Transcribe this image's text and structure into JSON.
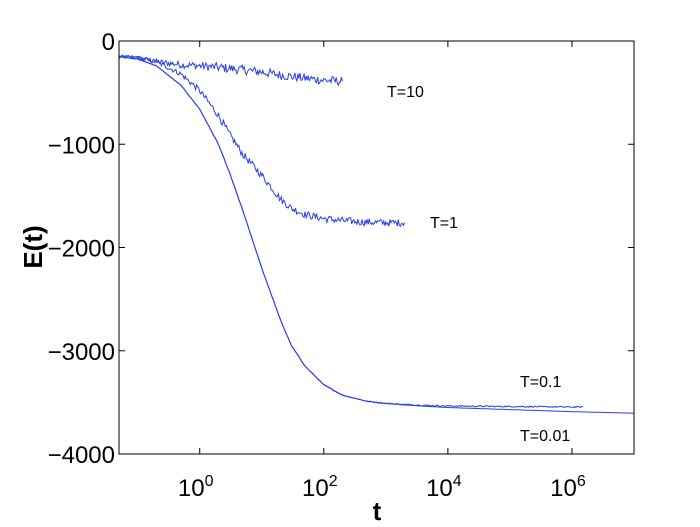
{
  "chart_data": {
    "type": "line",
    "title": "",
    "xlabel": "t",
    "ylabel": "E(t)",
    "xscale": "log",
    "xlim": [
      0.05,
      10000000
    ],
    "ylim": [
      -4000,
      0
    ],
    "grid": false,
    "x_ticks": [
      {
        "value": 1,
        "base": "10",
        "exp": "0"
      },
      {
        "value": 100,
        "base": "10",
        "exp": "2"
      },
      {
        "value": 10000,
        "base": "10",
        "exp": "4"
      },
      {
        "value": 1000000,
        "base": "10",
        "exp": "6"
      }
    ],
    "y_ticks": [
      {
        "value": 0,
        "label": "0"
      },
      {
        "value": -1000,
        "label": "−1000"
      },
      {
        "value": -2000,
        "label": "−2000"
      },
      {
        "value": -3000,
        "label": "−3000"
      },
      {
        "value": -4000,
        "label": "−4000"
      }
    ],
    "line_color": "#2a3ee8",
    "series": [
      {
        "name": "T=10",
        "noise": 45,
        "x": [
          0.05,
          0.1,
          0.2,
          0.5,
          1,
          2,
          5,
          10,
          20,
          50,
          100,
          200
        ],
        "y": [
          -150,
          -165,
          -200,
          -230,
          -240,
          -255,
          -280,
          -300,
          -330,
          -360,
          -380,
          -390
        ]
      },
      {
        "name": "T=1",
        "noise": 35,
        "x": [
          0.05,
          0.1,
          0.2,
          0.5,
          1,
          2,
          3,
          5,
          10,
          20,
          30,
          50,
          100,
          200,
          500,
          1000,
          2000
        ],
        "y": [
          -150,
          -160,
          -200,
          -320,
          -480,
          -720,
          -900,
          -1100,
          -1300,
          -1530,
          -1620,
          -1680,
          -1720,
          -1740,
          -1755,
          -1760,
          -1760
        ]
      },
      {
        "name": "T=0.1",
        "noise": 6,
        "x": [
          0.05,
          0.1,
          0.2,
          0.5,
          1,
          2,
          3,
          5,
          10,
          20,
          30,
          50,
          100,
          200,
          500,
          1000,
          2000,
          5000,
          10000,
          100000,
          1000000,
          1500000
        ],
        "y": [
          -150,
          -175,
          -240,
          -430,
          -660,
          -1000,
          -1270,
          -1650,
          -2200,
          -2700,
          -2950,
          -3150,
          -3330,
          -3430,
          -3490,
          -3510,
          -3520,
          -3530,
          -3535,
          -3540,
          -3545,
          -3545
        ]
      },
      {
        "name": "T=0.01",
        "noise": 0,
        "x": [
          0.05,
          0.1,
          0.2,
          0.5,
          1,
          2,
          3,
          5,
          10,
          20,
          30,
          50,
          100,
          200,
          500,
          1000,
          2000,
          5000,
          10000,
          100000,
          1000000,
          10000000
        ],
        "y": [
          -150,
          -175,
          -240,
          -430,
          -660,
          -1000,
          -1270,
          -1650,
          -2200,
          -2700,
          -2950,
          -3150,
          -3330,
          -3430,
          -3490,
          -3510,
          -3525,
          -3540,
          -3550,
          -3570,
          -3590,
          -3605
        ]
      }
    ]
  }
}
